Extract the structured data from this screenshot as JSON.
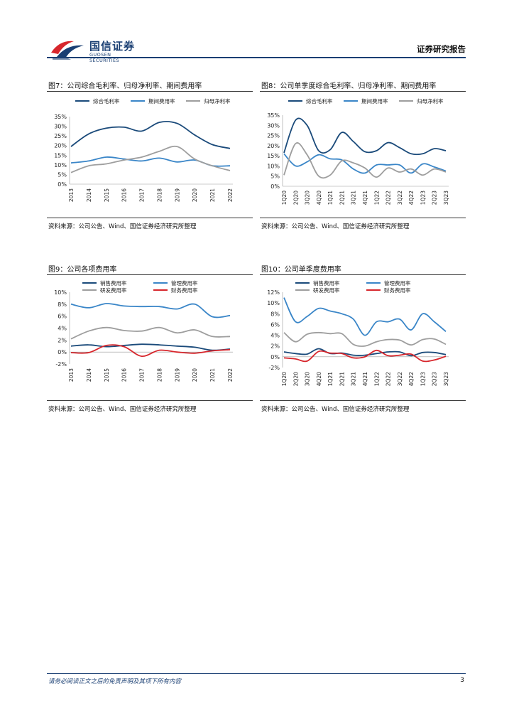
{
  "header": {
    "logo_cn": "国信证券",
    "logo_en": "GUOSEN SECURITIES",
    "doc_type": "证券研究报告",
    "brand_color": "#1a3f73",
    "accent_color": "#d7262c"
  },
  "footer": {
    "disclaimer": "请务必阅读正文之后的免责声明及其项下所有内容",
    "page_number": "3"
  },
  "figures": [
    {
      "title": "图7：公司综合毛利率、归母净利率、期间费用率",
      "source": "资料来源：公司公告、Wind、国信证券经济研究所整理"
    },
    {
      "title": "图8：公司单季度综合毛利率、归母净利率、期间费用率",
      "source": "资料来源：公司公告、Wind、国信证券经济研究所整理"
    },
    {
      "title": "图9：公司各项费用率",
      "source": "资料来源：公司公告、Wind、国信证券经济研究所整理"
    },
    {
      "title": "图10：公司单季度费用率",
      "source": "资料来源：公司公告、Wind、国信证券经济研究所整理"
    }
  ],
  "chart_data": [
    {
      "type": "line",
      "title": "图7：公司综合毛利率、归母净利率、期间费用率",
      "categories": [
        "2013",
        "2014",
        "2015",
        "2016",
        "2017",
        "2018",
        "2019",
        "2020",
        "2021",
        "2022"
      ],
      "ylim": [
        0,
        35
      ],
      "yticks": [
        "0%",
        "5%",
        "10%",
        "15%",
        "20%",
        "25%",
        "30%",
        "35%"
      ],
      "legend_cols": 3,
      "series": [
        {
          "name": "综合毛利率",
          "color": "#1a4a7a",
          "values": [
            19.5,
            26,
            29,
            29.5,
            27.5,
            32,
            31.5,
            25.5,
            20.5,
            18.5
          ]
        },
        {
          "name": "期间费用率",
          "color": "#3a86c8",
          "values": [
            11,
            12,
            14,
            13,
            12,
            13.5,
            11.5,
            12.5,
            9.5,
            9.5
          ]
        },
        {
          "name": "归母净利率",
          "color": "#9e9e9e",
          "values": [
            6,
            9.5,
            10.5,
            12.5,
            14,
            17,
            19.5,
            13,
            9.5,
            7
          ]
        }
      ]
    },
    {
      "type": "line",
      "title": "图8：公司单季度综合毛利率、归母净利率、期间费用率",
      "categories": [
        "1Q20",
        "2Q20",
        "3Q20",
        "4Q20",
        "1Q21",
        "2Q21",
        "3Q21",
        "4Q21",
        "1Q22",
        "2Q22",
        "3Q22",
        "4Q22",
        "1Q23",
        "2Q23",
        "3Q23"
      ],
      "ylim": [
        0,
        35
      ],
      "yticks": [
        "0%",
        "5%",
        "10%",
        "15%",
        "20%",
        "25%",
        "30%",
        "35%"
      ],
      "legend_cols": 3,
      "series": [
        {
          "name": "综合毛利率",
          "color": "#1a4a7a",
          "values": [
            16.5,
            32.5,
            30,
            17.5,
            18,
            26.5,
            22,
            17,
            17.5,
            21.5,
            19,
            16,
            16,
            18.5,
            17.5
          ]
        },
        {
          "name": "期间费用率",
          "color": "#3a86c8",
          "values": [
            16,
            10,
            12,
            15.5,
            13.5,
            13,
            8.5,
            6.5,
            10.5,
            10.5,
            10.5,
            6.5,
            11,
            9.5,
            7.5
          ]
        },
        {
          "name": "归母净利率",
          "color": "#9e9e9e",
          "values": [
            5.5,
            21,
            15.5,
            5,
            5.5,
            12.5,
            11.5,
            9,
            4.5,
            9,
            7,
            8.5,
            5.5,
            8.5,
            7
          ]
        }
      ]
    },
    {
      "type": "line",
      "title": "图9：公司各项费用率",
      "categories": [
        "2013",
        "2014",
        "2015",
        "2016",
        "2017",
        "2018",
        "2019",
        "2020",
        "2021",
        "2022"
      ],
      "ylim": [
        -2,
        10
      ],
      "yticks": [
        "-2%",
        "0%",
        "2%",
        "4%",
        "6%",
        "8%",
        "10%"
      ],
      "legend_cols": 2,
      "series": [
        {
          "name": "销售费用率",
          "color": "#1a4a7a",
          "values": [
            1,
            1.2,
            0.9,
            1.1,
            1.3,
            1.2,
            1.0,
            0.8,
            0.3,
            0.5
          ]
        },
        {
          "name": "管理费用率",
          "color": "#3a86c8",
          "values": [
            8,
            7.4,
            8.1,
            7.7,
            7.6,
            7.6,
            7.2,
            8.0,
            5.9,
            6.1
          ]
        },
        {
          "name": "研发费用率",
          "color": "#9e9e9e",
          "values": [
            2.2,
            3.5,
            4.1,
            3.6,
            3.5,
            4.1,
            3.2,
            3.7,
            2.6,
            2.6
          ]
        },
        {
          "name": "财务费用率",
          "color": "#d7262c",
          "values": [
            -0.1,
            -0.1,
            1.1,
            0.9,
            -0.7,
            0.3,
            0,
            -0.2,
            0.2,
            0.4
          ]
        }
      ]
    },
    {
      "type": "line",
      "title": "图10：公司单季度费用率",
      "categories": [
        "1Q20",
        "2Q20",
        "3Q20",
        "4Q20",
        "1Q21",
        "2Q21",
        "3Q21",
        "4Q21",
        "1Q22",
        "2Q22",
        "3Q22",
        "4Q22",
        "1Q23",
        "2Q23",
        "3Q23"
      ],
      "ylim": [
        -2,
        12
      ],
      "yticks": [
        "-2%",
        "0%",
        "2%",
        "4%",
        "6%",
        "8%",
        "10%",
        "12%"
      ],
      "legend_cols": 2,
      "series": [
        {
          "name": "销售费用率",
          "color": "#1a4a7a",
          "values": [
            0.9,
            0.6,
            0.5,
            1.5,
            0.6,
            0.7,
            0.3,
            0.3,
            0.6,
            0.9,
            0.9,
            0.2,
            0.8,
            0.8,
            0.4
          ]
        },
        {
          "name": "管理费用率",
          "color": "#3a86c8",
          "values": [
            11,
            6.5,
            7.5,
            9,
            8.5,
            8,
            7,
            4,
            6.5,
            6.5,
            7,
            5,
            8,
            6.5,
            4.7
          ]
        },
        {
          "name": "研发费用率",
          "color": "#9e9e9e",
          "values": [
            4.5,
            2.8,
            4.2,
            4.5,
            4.3,
            4.3,
            2.3,
            2,
            2.8,
            3.2,
            3.1,
            2.2,
            3.2,
            3.3,
            2.3
          ]
        },
        {
          "name": "财务费用率",
          "color": "#d7262c",
          "values": [
            -0.2,
            -0.4,
            -0.8,
            1,
            0.7,
            0.6,
            -0.2,
            0,
            1.2,
            0.2,
            0.3,
            0.5,
            -0.8,
            -0.6,
            0.1
          ]
        }
      ]
    }
  ]
}
